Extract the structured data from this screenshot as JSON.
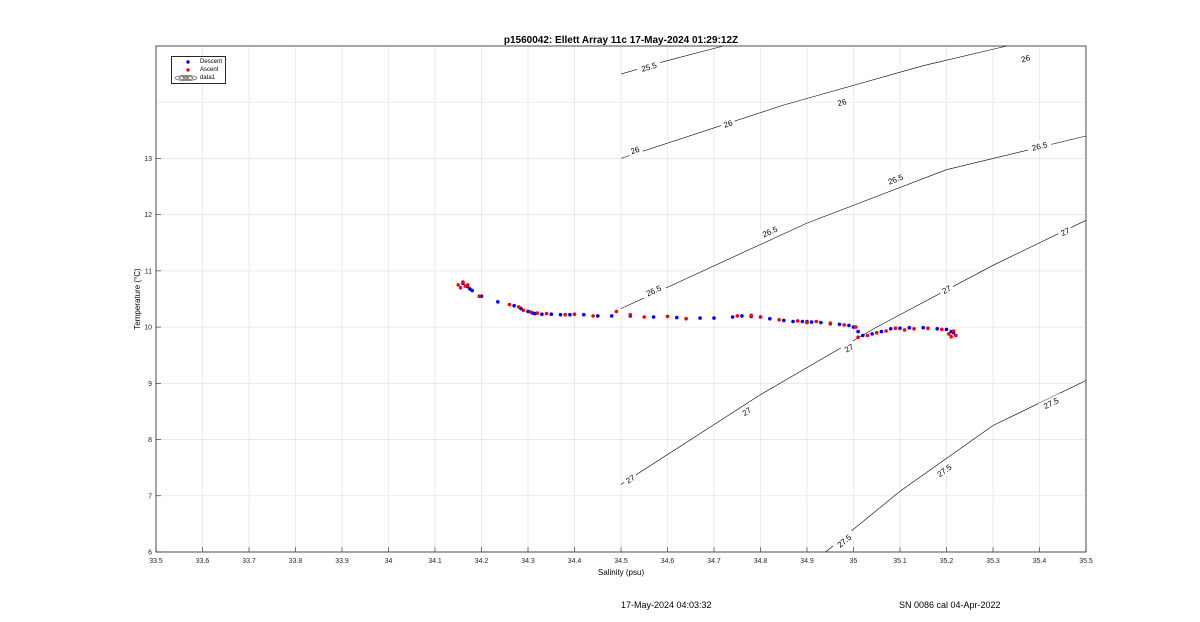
{
  "footer": {
    "timestamp": "17-May-2024 04:03:32",
    "serial": "SN 0086 cal 04-Apr-2022"
  },
  "chart_data": {
    "type": "scatter",
    "title": "p1560042: Ellett Array 11c 17-May-2024 01:29:12Z",
    "xlabel": "Salinity (psu)",
    "ylabel": "Temperature (°C)",
    "xlim": [
      33.5,
      35.5
    ],
    "ylim": [
      6,
      15
    ],
    "xticks": [
      "33.5",
      "33.6",
      "33.7",
      "33.8",
      "33.9",
      "34",
      "34.1",
      "34.2",
      "34.3",
      "34.4",
      "34.5",
      "34.6",
      "34.7",
      "34.8",
      "34.9",
      "35",
      "35.1",
      "35.2",
      "35.3",
      "35.4",
      "35.5"
    ],
    "yticks": [
      "6",
      "7",
      "8",
      "9",
      "10",
      "11",
      "12",
      "13"
    ],
    "grid": true,
    "legend_location": "top-left",
    "legend": [
      "Descent",
      "Ascent",
      "data1"
    ],
    "colors": {
      "descent": "#0000ff",
      "ascent": "#ff0000",
      "contour": "#000000",
      "grid": "#e6e6e6"
    },
    "series": [
      {
        "name": "Descent",
        "x": [
          34.16,
          34.17,
          34.175,
          34.18,
          34.2,
          34.235,
          34.27,
          34.285,
          34.3,
          34.31,
          34.315,
          34.33,
          34.35,
          34.37,
          34.39,
          34.42,
          34.45,
          34.48,
          34.52,
          34.57,
          34.62,
          34.67,
          34.7,
          34.74,
          34.76,
          34.78,
          34.8,
          34.82,
          34.85,
          34.87,
          34.89,
          34.9,
          34.91,
          34.93,
          34.95,
          34.97,
          34.99,
          35.0,
          35.01,
          35.02,
          35.04,
          35.06,
          35.08,
          35.1,
          35.12,
          35.15,
          35.18,
          35.2,
          35.21,
          35.215
        ],
        "y": [
          10.78,
          10.72,
          10.68,
          10.65,
          10.55,
          10.45,
          10.38,
          10.33,
          10.28,
          10.25,
          10.24,
          10.23,
          10.23,
          10.22,
          10.22,
          10.22,
          10.2,
          10.2,
          10.2,
          10.18,
          10.17,
          10.16,
          10.16,
          10.18,
          10.2,
          10.19,
          10.18,
          10.15,
          10.12,
          10.1,
          10.1,
          10.1,
          10.09,
          10.08,
          10.06,
          10.05,
          10.03,
          10.0,
          9.92,
          9.85,
          9.88,
          9.92,
          9.97,
          9.98,
          9.99,
          9.99,
          9.97,
          9.96,
          9.92,
          9.9
        ]
      },
      {
        "name": "Ascent",
        "x": [
          34.15,
          34.155,
          34.16,
          34.165,
          34.17,
          34.195,
          34.26,
          34.28,
          34.29,
          34.305,
          34.32,
          34.34,
          34.38,
          34.4,
          34.44,
          34.49,
          34.52,
          34.55,
          34.6,
          34.64,
          34.75,
          34.78,
          34.8,
          34.84,
          34.88,
          34.9,
          34.92,
          34.95,
          34.98,
          35.005,
          35.01,
          35.03,
          35.05,
          35.07,
          35.09,
          35.11,
          35.13,
          35.16,
          35.19,
          35.205,
          35.21,
          35.215,
          35.22
        ],
        "y": [
          10.75,
          10.7,
          10.8,
          10.73,
          10.75,
          10.55,
          10.4,
          10.36,
          10.3,
          10.27,
          10.25,
          10.24,
          10.22,
          10.23,
          10.2,
          10.28,
          10.22,
          10.18,
          10.19,
          10.15,
          10.2,
          10.21,
          10.18,
          10.13,
          10.11,
          10.08,
          10.1,
          10.07,
          10.04,
          10.0,
          9.82,
          9.85,
          9.9,
          9.93,
          9.98,
          9.95,
          9.97,
          9.98,
          9.96,
          9.88,
          9.83,
          9.93,
          9.85
        ]
      }
    ],
    "contours": [
      {
        "level": "25.5",
        "points": [
          [
            34.5,
            14.5
          ],
          [
            34.595,
            14.73
          ],
          [
            34.72,
            15.0
          ]
        ]
      },
      {
        "level": "26",
        "points": [
          [
            34.5,
            13.0
          ],
          [
            34.85,
            13.95
          ],
          [
            35.15,
            14.65
          ],
          [
            35.33,
            15.0
          ]
        ]
      },
      {
        "level": "26.5",
        "points": [
          [
            34.5,
            10.33
          ],
          [
            34.9,
            11.85
          ],
          [
            35.2,
            12.8
          ],
          [
            35.5,
            13.4
          ]
        ]
      },
      {
        "level": "27",
        "points": [
          [
            34.5,
            7.2
          ],
          [
            34.8,
            8.8
          ],
          [
            35.05,
            10.0
          ],
          [
            35.3,
            11.1
          ],
          [
            35.5,
            11.9
          ]
        ]
      },
      {
        "level": "27.5",
        "points": [
          [
            34.94,
            6.0
          ],
          [
            35.1,
            7.08
          ],
          [
            35.3,
            8.25
          ],
          [
            35.5,
            9.05
          ]
        ]
      }
    ],
    "contour_labels": [
      {
        "text": "25.5",
        "x": 34.56,
        "y": 14.63
      },
      {
        "text": "26",
        "x": 35.37,
        "y": 14.78
      },
      {
        "text": "26",
        "x": 34.975,
        "y": 14.0
      },
      {
        "text": "26",
        "x": 34.73,
        "y": 13.62
      },
      {
        "text": "26",
        "x": 34.53,
        "y": 13.15
      },
      {
        "text": "26.5",
        "x": 35.4,
        "y": 13.22
      },
      {
        "text": "26.5",
        "x": 35.09,
        "y": 12.63
      },
      {
        "text": "26.5",
        "x": 34.82,
        "y": 11.7
      },
      {
        "text": "26.5",
        "x": 34.57,
        "y": 10.65
      },
      {
        "text": "27",
        "x": 35.455,
        "y": 11.7
      },
      {
        "text": "27",
        "x": 35.2,
        "y": 10.67
      },
      {
        "text": "27",
        "x": 34.99,
        "y": 9.63
      },
      {
        "text": "27",
        "x": 34.77,
        "y": 8.5
      },
      {
        "text": "27",
        "x": 34.52,
        "y": 7.3
      },
      {
        "text": "27.5",
        "x": 35.425,
        "y": 8.65
      },
      {
        "text": "27.5",
        "x": 35.195,
        "y": 7.45
      },
      {
        "text": "27.5",
        "x": 34.98,
        "y": 6.2
      }
    ]
  }
}
